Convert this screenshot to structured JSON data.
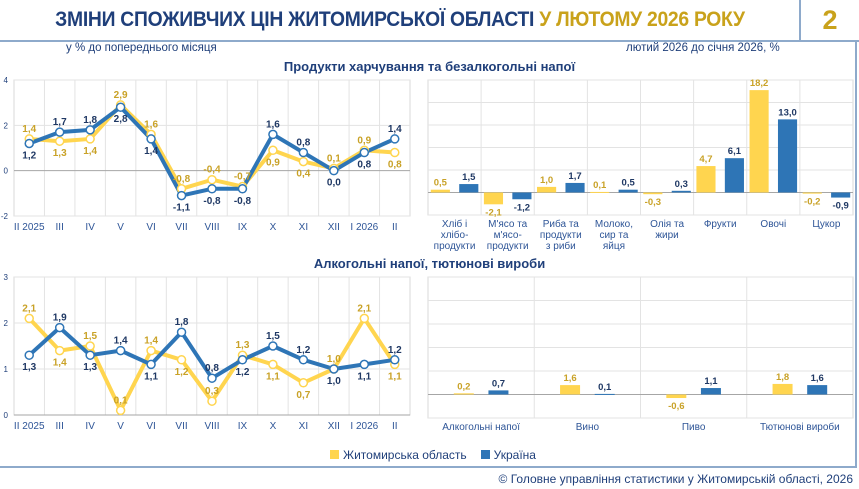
{
  "header": {
    "title_main": "ЗМІНИ СПОЖИВЧИХ ЦІН ЖИТОМИРСЬКОЇ ОБЛАСТІ",
    "title_accent": "У ЛЮТОМУ 2026 РОКУ",
    "page_number": "2"
  },
  "subtitles": {
    "left": "у % до попереднього місяця",
    "right": "лютий 2026 до січня 2026, %"
  },
  "section_titles": [
    "Продукти харчування та безалкогольні напої",
    "Алкогольні напої, тютюнові вироби"
  ],
  "colors": {
    "region": "#FFD54F",
    "region_label": "#C9A227",
    "ukraine": "#2E75B6",
    "ukraine_label": "#1F3864"
  },
  "legend": [
    {
      "label": "Житомирська область"
    },
    {
      "label": "Україна"
    }
  ],
  "footer": "© Головне управління статистики у Житомирській області, 2026",
  "chart_data": [
    {
      "type": "line",
      "title": "Продукти харчування та безалкогольні напої",
      "categories": [
        "II 2025",
        "III",
        "IV",
        "V",
        "VI",
        "VII",
        "VIII",
        "IX",
        "X",
        "XI",
        "XII",
        "I 2026",
        "II"
      ],
      "ylim": [
        -2,
        4
      ],
      "yticks": [
        -2,
        0,
        2,
        4
      ],
      "grid": true,
      "series": [
        {
          "name": "Житомирська область",
          "values": [
            1.4,
            1.3,
            1.4,
            2.9,
            1.6,
            -0.8,
            -0.4,
            -0.7,
            0.9,
            0.4,
            0.1,
            0.9,
            0.8
          ]
        },
        {
          "name": "Україна",
          "values": [
            1.2,
            1.7,
            1.8,
            2.8,
            1.4,
            -1.1,
            -0.8,
            -0.8,
            1.6,
            0.8,
            0.0,
            0.8,
            1.4
          ]
        }
      ]
    },
    {
      "type": "bar",
      "title": "Продукти харчування та безалкогольні напої",
      "categories": [
        "Хліб і хлібо-продукти",
        "М'ясо та м'ясо-продукти",
        "Риба та продукти з риби",
        "Молоко, сир та яйця",
        "Олія та жири",
        "Фрукти",
        "Овочі",
        "Цукор"
      ],
      "ylim": [
        -4,
        20
      ],
      "grid": true,
      "series": [
        {
          "name": "Житомирська область",
          "values": [
            0.5,
            -2.1,
            1.0,
            0.1,
            -0.3,
            4.7,
            18.2,
            -0.2
          ]
        },
        {
          "name": "Україна",
          "values": [
            1.5,
            -1.2,
            1.7,
            0.5,
            0.3,
            6.1,
            13.0,
            -0.9
          ]
        }
      ]
    },
    {
      "type": "line",
      "title": "Алкогольні напої, тютюнові вироби",
      "categories": [
        "II 2025",
        "III",
        "IV",
        "V",
        "VI",
        "VII",
        "VIII",
        "IX",
        "X",
        "XI",
        "XII",
        "I 2026",
        "II"
      ],
      "ylim": [
        0,
        3
      ],
      "yticks": [
        0,
        1,
        2,
        3
      ],
      "grid": true,
      "series": [
        {
          "name": "Житомирська область",
          "values": [
            2.1,
            1.4,
            1.5,
            0.1,
            1.4,
            1.2,
            0.3,
            1.3,
            1.1,
            0.7,
            1.0,
            2.1,
            1.1
          ]
        },
        {
          "name": "Україна",
          "values": [
            1.3,
            1.9,
            1.3,
            1.4,
            1.1,
            1.8,
            0.8,
            1.2,
            1.5,
            1.2,
            1.0,
            1.1,
            1.2
          ]
        }
      ]
    },
    {
      "type": "bar",
      "title": "Алкогольні напої, тютюнові вироби",
      "categories": [
        "Алкогольні напої",
        "Вино",
        "Пиво",
        "Тютюнові вироби"
      ],
      "ylim": [
        -4,
        20
      ],
      "grid": true,
      "series": [
        {
          "name": "Житомирська область",
          "values": [
            0.2,
            1.6,
            -0.6,
            1.8
          ]
        },
        {
          "name": "Україна",
          "values": [
            0.7,
            0.1,
            1.1,
            1.6
          ]
        }
      ]
    }
  ]
}
